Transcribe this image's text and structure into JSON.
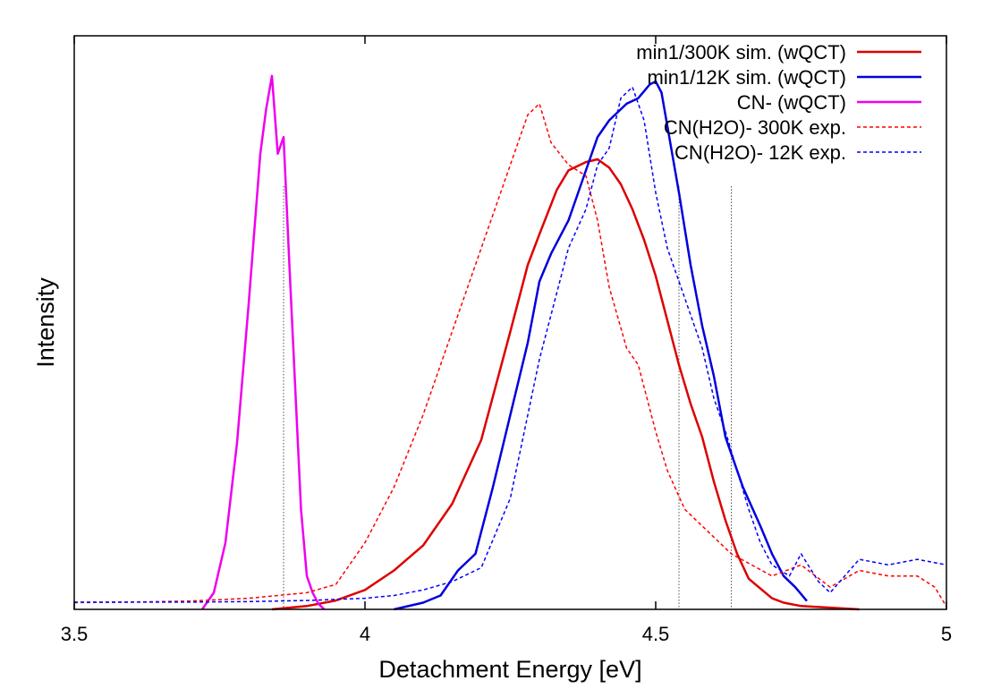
{
  "chart_data": {
    "type": "line",
    "title": "",
    "xlabel": "Detachment Energy [eV]",
    "ylabel": "Intensity",
    "xlim": [
      3.5,
      5.0
    ],
    "ylim": [
      0,
      1.0
    ],
    "xticks": [
      3.5,
      4.0,
      4.5,
      5.0
    ],
    "xtick_labels": [
      "3.5",
      "4",
      "4.5",
      "5"
    ],
    "yticks_shown": false,
    "grid": false,
    "legend_position": "top-right",
    "reference_lines_x": [
      3.86,
      4.54,
      4.63
    ],
    "series": [
      {
        "name": "min1/300K sim. (wQCT)",
        "color": "#dd0000",
        "dash": "solid",
        "x": [
          3.84,
          3.9,
          3.95,
          4.0,
          4.05,
          4.1,
          4.15,
          4.2,
          4.25,
          4.28,
          4.3,
          4.33,
          4.35,
          4.37,
          4.38,
          4.4,
          4.42,
          4.44,
          4.46,
          4.48,
          4.5,
          4.52,
          4.54,
          4.56,
          4.58,
          4.6,
          4.62,
          4.64,
          4.66,
          4.7,
          4.72,
          4.75,
          4.8,
          4.85
        ],
        "y": [
          0.0,
          0.006,
          0.016,
          0.035,
          0.07,
          0.115,
          0.19,
          0.305,
          0.5,
          0.62,
          0.675,
          0.755,
          0.79,
          0.8,
          0.805,
          0.81,
          0.795,
          0.765,
          0.72,
          0.665,
          0.6,
          0.52,
          0.44,
          0.37,
          0.31,
          0.23,
          0.16,
          0.1,
          0.055,
          0.02,
          0.012,
          0.006,
          0.003,
          0.0
        ]
      },
      {
        "name": "min1/12K sim. (wQCT)",
        "color": "#0000dd",
        "dash": "solid",
        "x": [
          4.05,
          4.1,
          4.13,
          4.16,
          4.19,
          4.22,
          4.25,
          4.28,
          4.3,
          4.32,
          4.35,
          4.38,
          4.4,
          4.42,
          4.45,
          4.47,
          4.49,
          4.5,
          4.51,
          4.52,
          4.54,
          4.56,
          4.58,
          4.6,
          4.62,
          4.65,
          4.68,
          4.7,
          4.72,
          4.74,
          4.76
        ],
        "y": [
          0.0,
          0.012,
          0.025,
          0.07,
          0.1,
          0.22,
          0.35,
          0.48,
          0.59,
          0.64,
          0.7,
          0.79,
          0.85,
          0.88,
          0.91,
          0.92,
          0.945,
          0.95,
          0.93,
          0.87,
          0.75,
          0.62,
          0.51,
          0.42,
          0.31,
          0.22,
          0.15,
          0.1,
          0.06,
          0.04,
          0.015
        ]
      },
      {
        "name": "CN- (wQCT)",
        "color": "#ee00ee",
        "dash": "solid",
        "x": [
          3.72,
          3.74,
          3.76,
          3.78,
          3.8,
          3.82,
          3.83,
          3.84,
          3.85,
          3.86,
          3.87,
          3.88,
          3.89,
          3.9,
          3.91,
          3.92,
          3.93
        ],
        "y": [
          0.0,
          0.03,
          0.12,
          0.3,
          0.55,
          0.82,
          0.9,
          0.96,
          0.82,
          0.85,
          0.62,
          0.4,
          0.18,
          0.06,
          0.03,
          0.01,
          0.0
        ]
      },
      {
        "name": "CN(H2O)- 300K exp.",
        "color": "#ff0000",
        "dash": "dashed",
        "x": [
          3.5,
          3.6,
          3.7,
          3.8,
          3.9,
          3.95,
          4.0,
          4.05,
          4.1,
          4.15,
          4.2,
          4.25,
          4.28,
          4.3,
          4.32,
          4.35,
          4.38,
          4.4,
          4.42,
          4.45,
          4.47,
          4.5,
          4.52,
          4.55,
          4.6,
          4.63,
          4.7,
          4.75,
          4.8,
          4.85,
          4.9,
          4.95,
          4.98,
          5.0
        ],
        "y": [
          0.012,
          0.013,
          0.015,
          0.02,
          0.03,
          0.045,
          0.12,
          0.22,
          0.35,
          0.5,
          0.65,
          0.8,
          0.89,
          0.91,
          0.84,
          0.8,
          0.78,
          0.7,
          0.58,
          0.47,
          0.44,
          0.32,
          0.25,
          0.18,
          0.13,
          0.1,
          0.06,
          0.08,
          0.04,
          0.07,
          0.06,
          0.06,
          0.04,
          0.005
        ]
      },
      {
        "name": "CN(H2O)- 12K exp.",
        "color": "#0000ff",
        "dash": "dashed",
        "x": [
          3.5,
          3.6,
          3.7,
          3.8,
          3.9,
          4.0,
          4.05,
          4.1,
          4.15,
          4.2,
          4.25,
          4.3,
          4.33,
          4.35,
          4.38,
          4.4,
          4.42,
          4.44,
          4.46,
          4.48,
          4.5,
          4.52,
          4.55,
          4.58,
          4.6,
          4.62,
          4.64,
          4.66,
          4.68,
          4.7,
          4.73,
          4.75,
          4.78,
          4.8,
          4.85,
          4.9,
          4.95,
          5.0
        ],
        "y": [
          0.013,
          0.013,
          0.013,
          0.014,
          0.016,
          0.02,
          0.025,
          0.035,
          0.05,
          0.075,
          0.2,
          0.45,
          0.57,
          0.65,
          0.72,
          0.8,
          0.83,
          0.92,
          0.94,
          0.88,
          0.75,
          0.65,
          0.56,
          0.47,
          0.38,
          0.32,
          0.25,
          0.18,
          0.12,
          0.08,
          0.06,
          0.1,
          0.05,
          0.03,
          0.09,
          0.08,
          0.09,
          0.08
        ]
      }
    ]
  }
}
